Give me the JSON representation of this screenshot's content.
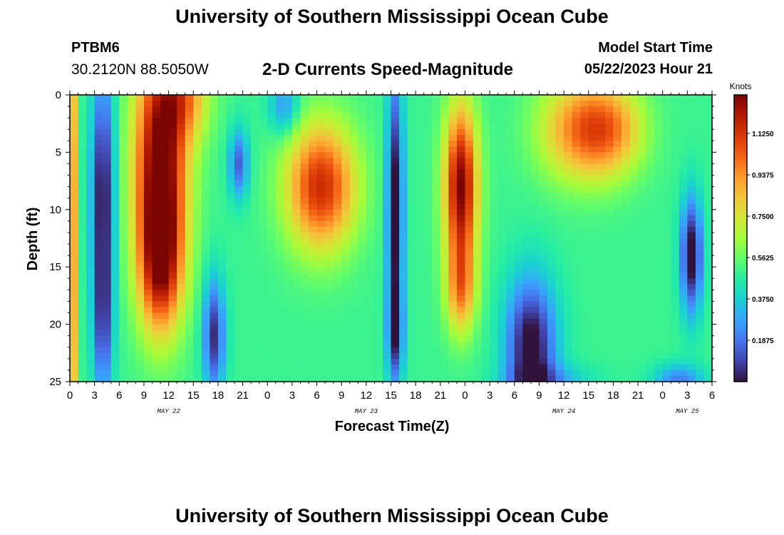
{
  "header": {
    "title": "University of Southern Mississippi Ocean Cube",
    "station_id": "PTBM6",
    "station_coords": "30.2120N  88.5050W",
    "plot_title": "2-D Currents Speed-Magnitude",
    "model_label": "Model Start Time",
    "model_time": "05/22/2023 Hour 21"
  },
  "footer": {
    "title": "University of Southern Mississippi Ocean Cube"
  },
  "chart_data": {
    "type": "heatmap",
    "title": "2-D Currents Speed-Magnitude",
    "xlabel": "Forecast Time(Z)",
    "ylabel": "Depth (ft)",
    "x_unit": "hours since 2023-05-22 00Z",
    "xlim": [
      0,
      78
    ],
    "ylim": [
      0,
      25
    ],
    "x_ticks": [
      0,
      3,
      6,
      9,
      12,
      15,
      18,
      21,
      24,
      27,
      30,
      33,
      36,
      39,
      42,
      45,
      48,
      51,
      54,
      57,
      60,
      63,
      66,
      69,
      72,
      75,
      78
    ],
    "x_tick_labels": [
      "0",
      "3",
      "6",
      "9",
      "12",
      "15",
      "18",
      "21",
      "0",
      "3",
      "6",
      "9",
      "12",
      "15",
      "18",
      "21",
      "0",
      "3",
      "6",
      "9",
      "12",
      "15",
      "18",
      "21",
      "0",
      "3",
      "6"
    ],
    "day_labels": [
      {
        "x": 12,
        "label": "MAY 22"
      },
      {
        "x": 36,
        "label": "MAY 23"
      },
      {
        "x": 60,
        "label": "MAY 24"
      },
      {
        "x": 75,
        "label": "MAY 25"
      }
    ],
    "y_ticks": [
      0,
      5,
      10,
      15,
      20,
      25
    ],
    "y_tick_labels": [
      "0",
      "5",
      "10",
      "15",
      "20",
      "25"
    ],
    "colorbar": {
      "unit": "Knots",
      "range": [
        0,
        1.3
      ],
      "ticks": [
        1.125,
        0.9375,
        0.75,
        0.5625,
        0.375,
        0.1875
      ],
      "tick_labels": [
        "1.1250",
        "0.9375",
        "0.7500",
        "0.5625",
        "0.3750",
        "0.1875"
      ],
      "colors": [
        "#30123b",
        "#4145ab",
        "#4675ed",
        "#39a2fc",
        "#1bcfd4",
        "#24eca6",
        "#61fc6c",
        "#a4fc3b",
        "#d1e834",
        "#f3c63a",
        "#fe9b2d",
        "#f36315",
        "#d93806",
        "#b11901",
        "#7a0402"
      ]
    },
    "features": [
      {
        "t": 0.3,
        "d": 12,
        "st": 0.5,
        "ds": 30,
        "a": 0.45
      },
      {
        "t": 4,
        "d": 8,
        "st": 1.4,
        "ds": 10,
        "a": -0.5
      },
      {
        "t": 4,
        "d": 20,
        "st": 1.2,
        "ds": 7,
        "a": -0.35
      },
      {
        "t": 11,
        "d": 6,
        "st": 3.2,
        "ds": 10,
        "a": 0.85
      },
      {
        "t": 11,
        "d": 15,
        "st": 2.6,
        "ds": 6,
        "a": 0.55
      },
      {
        "t": 14,
        "d": 0,
        "st": 3,
        "ds": 4,
        "a": 0.35
      },
      {
        "t": 17.5,
        "d": 21,
        "st": 1.3,
        "ds": 5,
        "a": -0.45
      },
      {
        "t": 20.5,
        "d": 6,
        "st": 1.2,
        "ds": 3,
        "a": -0.35
      },
      {
        "t": 26,
        "d": 1,
        "st": 1.8,
        "ds": 2.5,
        "a": -0.25
      },
      {
        "t": 30.5,
        "d": 8,
        "st": 4.2,
        "ds": 5.5,
        "a": 0.65
      },
      {
        "t": 39.5,
        "d": 10,
        "st": 1,
        "ds": 12,
        "a": -0.55
      },
      {
        "t": 39.5,
        "d": 21,
        "st": 1,
        "ds": 4,
        "a": -0.3
      },
      {
        "t": 47.5,
        "d": 8,
        "st": 2,
        "ds": 7,
        "a": 0.8
      },
      {
        "t": 47.5,
        "d": 17,
        "st": 1.8,
        "ds": 4,
        "a": 0.4
      },
      {
        "t": 56,
        "d": 22,
        "st": 3,
        "ds": 6,
        "a": -0.55
      },
      {
        "t": 58,
        "d": 25,
        "st": 5,
        "ds": 1.5,
        "a": -0.2
      },
      {
        "t": 62,
        "d": 3,
        "st": 5,
        "ds": 4.5,
        "a": 0.45
      },
      {
        "t": 66,
        "d": 3,
        "st": 4,
        "ds": 4,
        "a": 0.3
      },
      {
        "t": 75.5,
        "d": 14,
        "st": 1.3,
        "ds": 5,
        "a": -0.55
      },
      {
        "t": 74,
        "d": 25,
        "st": 3,
        "ds": 1.5,
        "a": -0.3
      }
    ],
    "base_value": 0.5
  }
}
